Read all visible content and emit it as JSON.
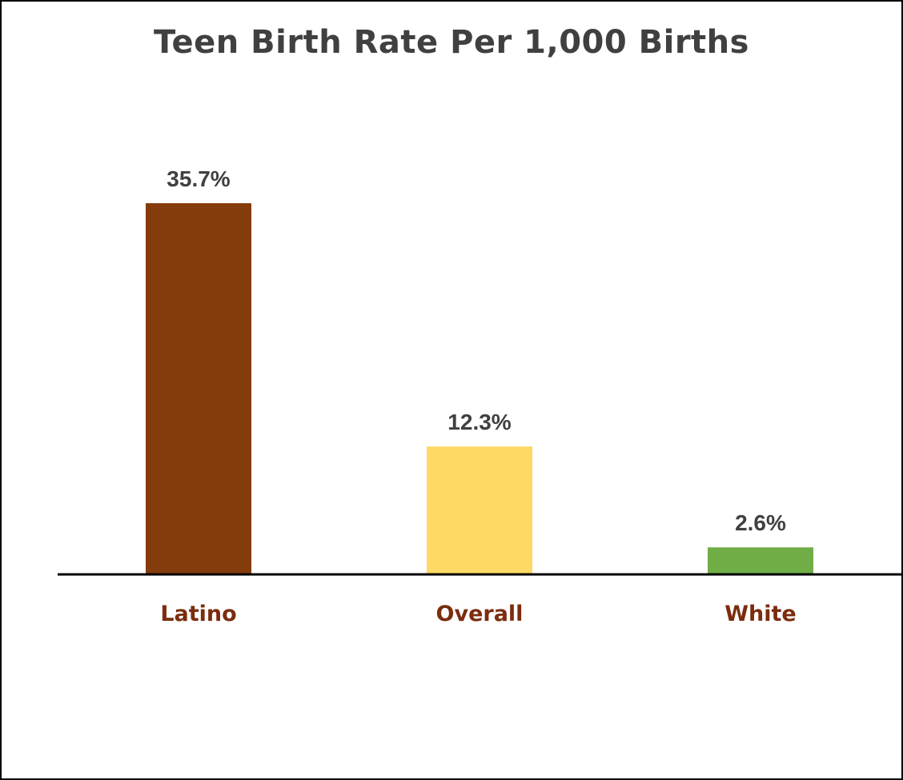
{
  "chart_data": {
    "type": "bar",
    "title": "Teen Birth Rate Per 1,000 Births",
    "categories": [
      "Latino",
      "Overall",
      "White"
    ],
    "values": [
      35.7,
      12.3,
      2.6
    ],
    "data_labels": [
      "35.7%",
      "12.3%",
      "2.6%"
    ],
    "colors": [
      "#843c0c",
      "#ffd966",
      "#70ad47"
    ],
    "category_label_color": "#7b2d0e",
    "xlabel": "",
    "ylabel": "",
    "ylim": [
      0,
      35.7
    ],
    "grid": false,
    "legend": "none"
  }
}
